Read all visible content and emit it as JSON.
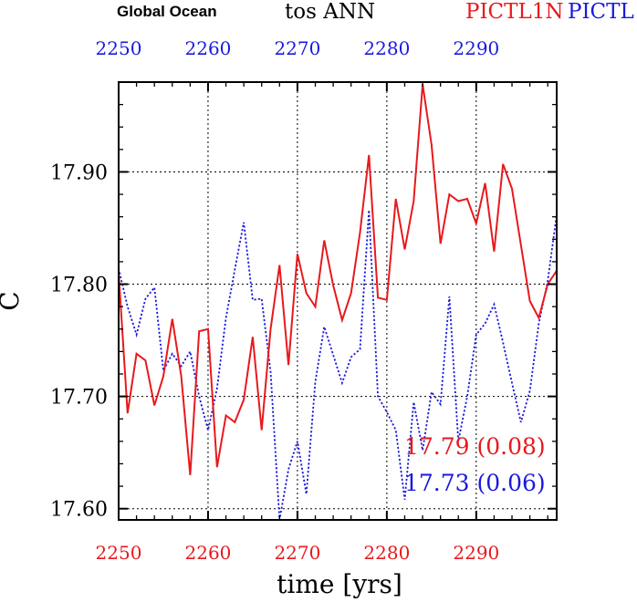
{
  "header": {
    "region": "Global Ocean",
    "variable": "tos ANN",
    "case_red": "PICTL1N",
    "case_blue": "PICTL"
  },
  "colors": {
    "red": "#e8191c",
    "blue": "#1a1adc",
    "axis": "#000000"
  },
  "chart_data": {
    "type": "line",
    "xlabel": "time [yrs]",
    "ylabel": "C",
    "xlim": [
      2250,
      2299
    ],
    "ylim": [
      17.59,
      17.98
    ],
    "x_ticks": [
      "2250",
      "2260",
      "2270",
      "2280",
      "2290"
    ],
    "x_tick_values": [
      2250,
      2260,
      2270,
      2280,
      2290
    ],
    "y_ticks": [
      "17.60",
      "17.70",
      "17.80",
      "17.90"
    ],
    "y_tick_values": [
      17.6,
      17.7,
      17.8,
      17.9
    ],
    "grid": true,
    "annotations": {
      "red_stat": "17.79 (0.08)",
      "blue_stat": "17.73 (0.06)"
    },
    "x": [
      2250,
      2251,
      2252,
      2253,
      2254,
      2255,
      2256,
      2257,
      2258,
      2259,
      2260,
      2261,
      2262,
      2263,
      2264,
      2265,
      2266,
      2267,
      2268,
      2269,
      2270,
      2271,
      2272,
      2273,
      2274,
      2275,
      2276,
      2277,
      2278,
      2279,
      2280,
      2281,
      2282,
      2283,
      2284,
      2285,
      2286,
      2287,
      2288,
      2289,
      2290,
      2291,
      2292,
      2293,
      2294,
      2295,
      2296,
      2297,
      2298,
      2299
    ],
    "series": [
      {
        "name": "PICTL1N",
        "color": "red",
        "style": "solid",
        "values": [
          17.81,
          17.685,
          17.738,
          17.732,
          17.692,
          17.718,
          17.769,
          17.718,
          17.63,
          17.758,
          17.76,
          17.637,
          17.683,
          17.677,
          17.697,
          17.753,
          17.67,
          17.76,
          17.817,
          17.728,
          17.827,
          17.792,
          17.78,
          17.839,
          17.799,
          17.768,
          17.792,
          17.846,
          17.915,
          17.788,
          17.786,
          17.876,
          17.831,
          17.874,
          17.978,
          17.924,
          17.836,
          17.88,
          17.874,
          17.876,
          17.854,
          17.89,
          17.829,
          17.907,
          17.885,
          17.835,
          17.785,
          17.77,
          17.8,
          17.812
        ]
      },
      {
        "name": "PICTL",
        "color": "blue",
        "style": "dotted",
        "values": [
          17.814,
          17.78,
          17.755,
          17.787,
          17.797,
          17.723,
          17.738,
          17.727,
          17.74,
          17.7,
          17.67,
          17.707,
          17.77,
          17.813,
          17.855,
          17.786,
          17.787,
          17.722,
          17.59,
          17.635,
          17.66,
          17.613,
          17.713,
          17.762,
          17.737,
          17.712,
          17.735,
          17.742,
          17.866,
          17.7,
          17.686,
          17.67,
          17.608,
          17.695,
          17.652,
          17.704,
          17.693,
          17.789,
          17.66,
          17.7,
          17.755,
          17.765,
          17.782,
          17.748,
          17.712,
          17.677,
          17.705,
          17.765,
          17.803,
          17.862
        ]
      }
    ]
  }
}
